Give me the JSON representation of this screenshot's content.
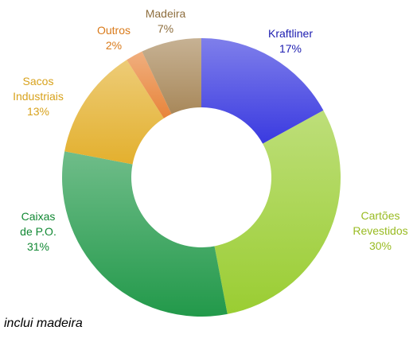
{
  "chart_data": {
    "type": "donut",
    "categories": [
      "Kraftliner",
      "Cartões\nRevestidos",
      "Caixas\nde P.O.",
      "Sacos\nIndustriais",
      "Outros",
      "Madeira"
    ],
    "values": [
      17,
      30,
      31,
      13,
      2,
      7
    ],
    "value_labels": [
      "17%",
      "30%",
      "31%",
      "13%",
      "2%",
      "7%"
    ],
    "colors": [
      "#3a3ae0",
      "#9acd32",
      "#22994a",
      "#e3b02e",
      "#e8843a",
      "#a8885a"
    ],
    "label_colors": [
      "#1c1cb0",
      "#99bb22",
      "#118833",
      "#d8a21c",
      "#d97a1a",
      "#8e6e3e"
    ],
    "note": "inclui madeira"
  }
}
